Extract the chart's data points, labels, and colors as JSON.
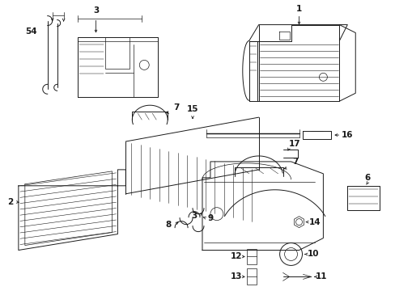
{
  "bg_color": "#ffffff",
  "line_color": "#1a1a1a",
  "fig_width": 4.89,
  "fig_height": 3.6,
  "dpi": 100,
  "parts": {
    "label_fontsize": 7.5,
    "label_fontweight": "bold"
  }
}
